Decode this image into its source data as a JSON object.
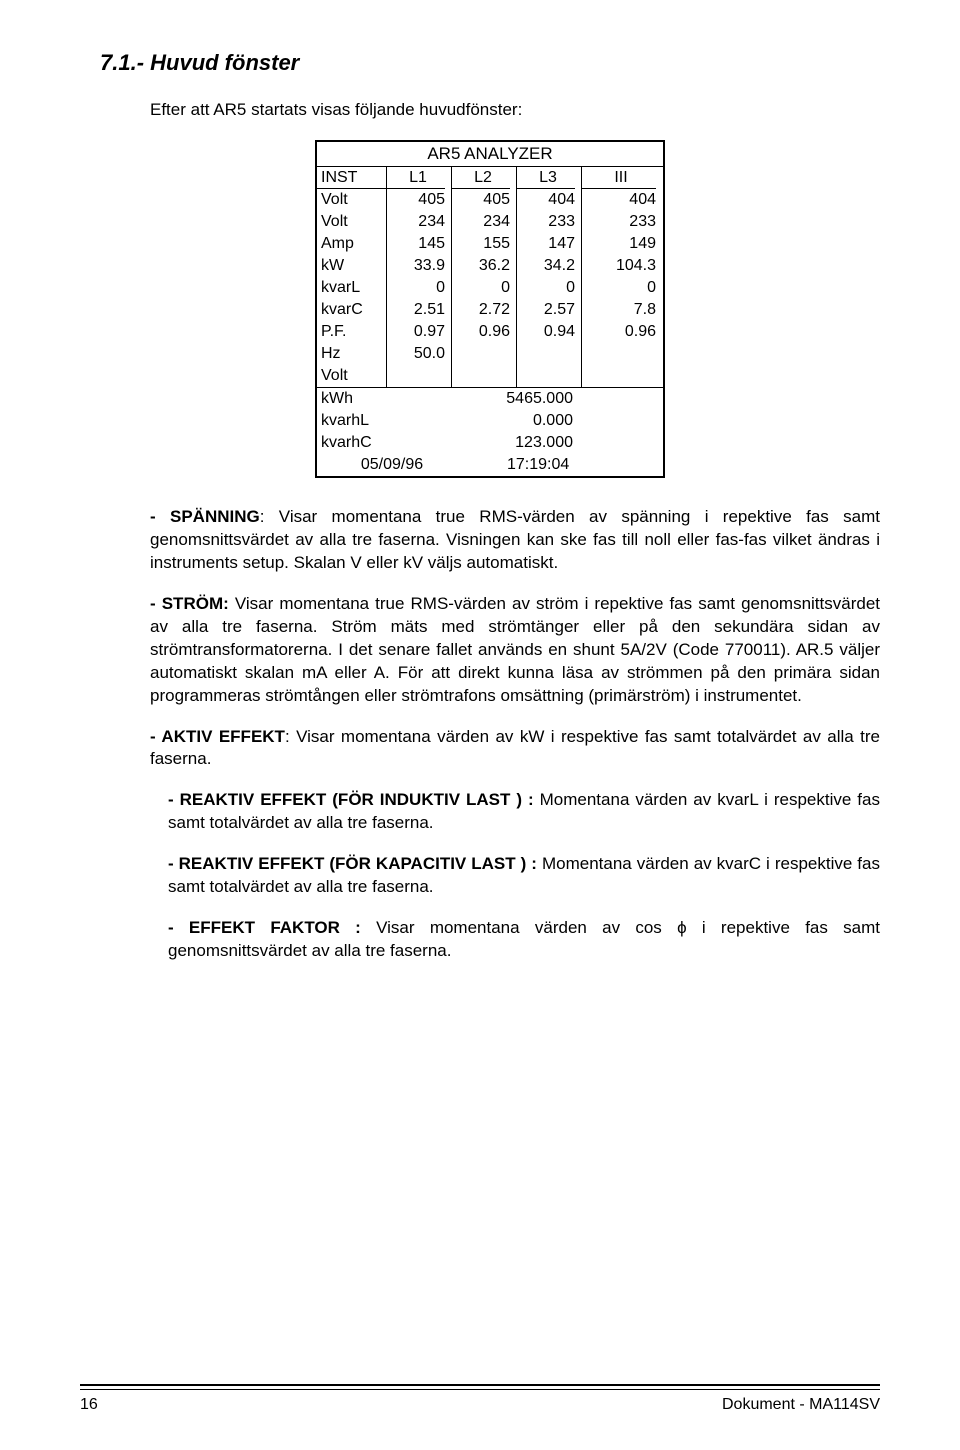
{
  "heading": "7.1.-  Huvud fönster",
  "intro": "Efter att AR5 startats visas följande huvudfönster:",
  "analyzer": {
    "title": "AR5 ANALYZER",
    "columns": [
      "INST",
      "L1",
      "L2",
      "L3",
      "III"
    ],
    "rows": [
      {
        "label": "Volt",
        "v": [
          "405",
          "405",
          "404",
          "404"
        ]
      },
      {
        "label": "Volt",
        "v": [
          "234",
          "234",
          "233",
          "233"
        ]
      },
      {
        "label": "Amp",
        "v": [
          "145",
          "155",
          "147",
          "149"
        ]
      },
      {
        "label": "kW",
        "v": [
          "33.9",
          "36.2",
          "34.2",
          "104.3"
        ]
      },
      {
        "label": "kvarL",
        "v": [
          "0",
          "0",
          "0",
          "0"
        ]
      },
      {
        "label": "kvarC",
        "v": [
          "2.51",
          "2.72",
          "2.57",
          "7.8"
        ]
      },
      {
        "label": "P.F.",
        "v": [
          "0.97",
          "0.96",
          "0.94",
          "0.96"
        ]
      },
      {
        "label": "Hz",
        "v": [
          "50.0",
          "",
          "",
          ""
        ]
      },
      {
        "label": "Volt",
        "v": [
          "",
          "",
          "",
          ""
        ]
      }
    ],
    "bottom": [
      {
        "label": "kWh",
        "value": "5465.000"
      },
      {
        "label": "kvarhL",
        "value": "0.000"
      },
      {
        "label": "kvarhC",
        "value": "123.000"
      }
    ],
    "date": "05/09/96",
    "time": "17:19:04"
  },
  "bullets": {
    "b1_lead": "- SPÄNNING",
    "b1_rest": ": Visar momentana true RMS-värden av spänning i repektive fas samt genomsnittsvärdet av alla tre faserna. Visningen kan ske fas till noll eller fas-fas vilket ändras i instruments setup. Skalan V eller kV väljs automatiskt.",
    "b2_lead": "- STRÖM:",
    "b2_rest": " Visar momentana true RMS-värden av ström i repektive fas samt genomsnittsvärdet av alla tre faserna. Ström mäts med strömtänger eller på den sekundära sidan av strömtransformatorerna. I det senare fallet används en shunt  5A/2V (Code 770011).  AR.5 väljer automatiskt skalan mA eller A.  För att direkt kunna läsa av strömmen på den primära sidan programmeras strömtången eller strömtrafons omsättning (primärström)  i instrumentet.",
    "b3_lead": "-  AKTIV EFFEKT",
    "b3_rest": ":  Visar momentana värden av kW i respektive fas samt totalvärdet av alla tre faserna.",
    "b4_lead": "- REAKTIV EFFEKT (FÖR INDUKTIV LAST ) :",
    "b4_rest": "  Momentana värden av kvarL i respektive fas samt totalvärdet av alla tre faserna.",
    "b5_lead": "- REAKTIV EFFEKT (FÖR KAPACITIV LAST ) :",
    "b5_rest": " Momentana värden av kvarC i respektive fas samt totalvärdet av alla tre faserna.",
    "b6_lead": "- EFFEKT FAKTOR :",
    "b6_rest": " Visar momentana värden av cos ϕ i repektive fas samt genomsnittsvärdet av alla tre faserna."
  },
  "footer": {
    "page": "16",
    "doc": "Dokument - MA114SV"
  }
}
